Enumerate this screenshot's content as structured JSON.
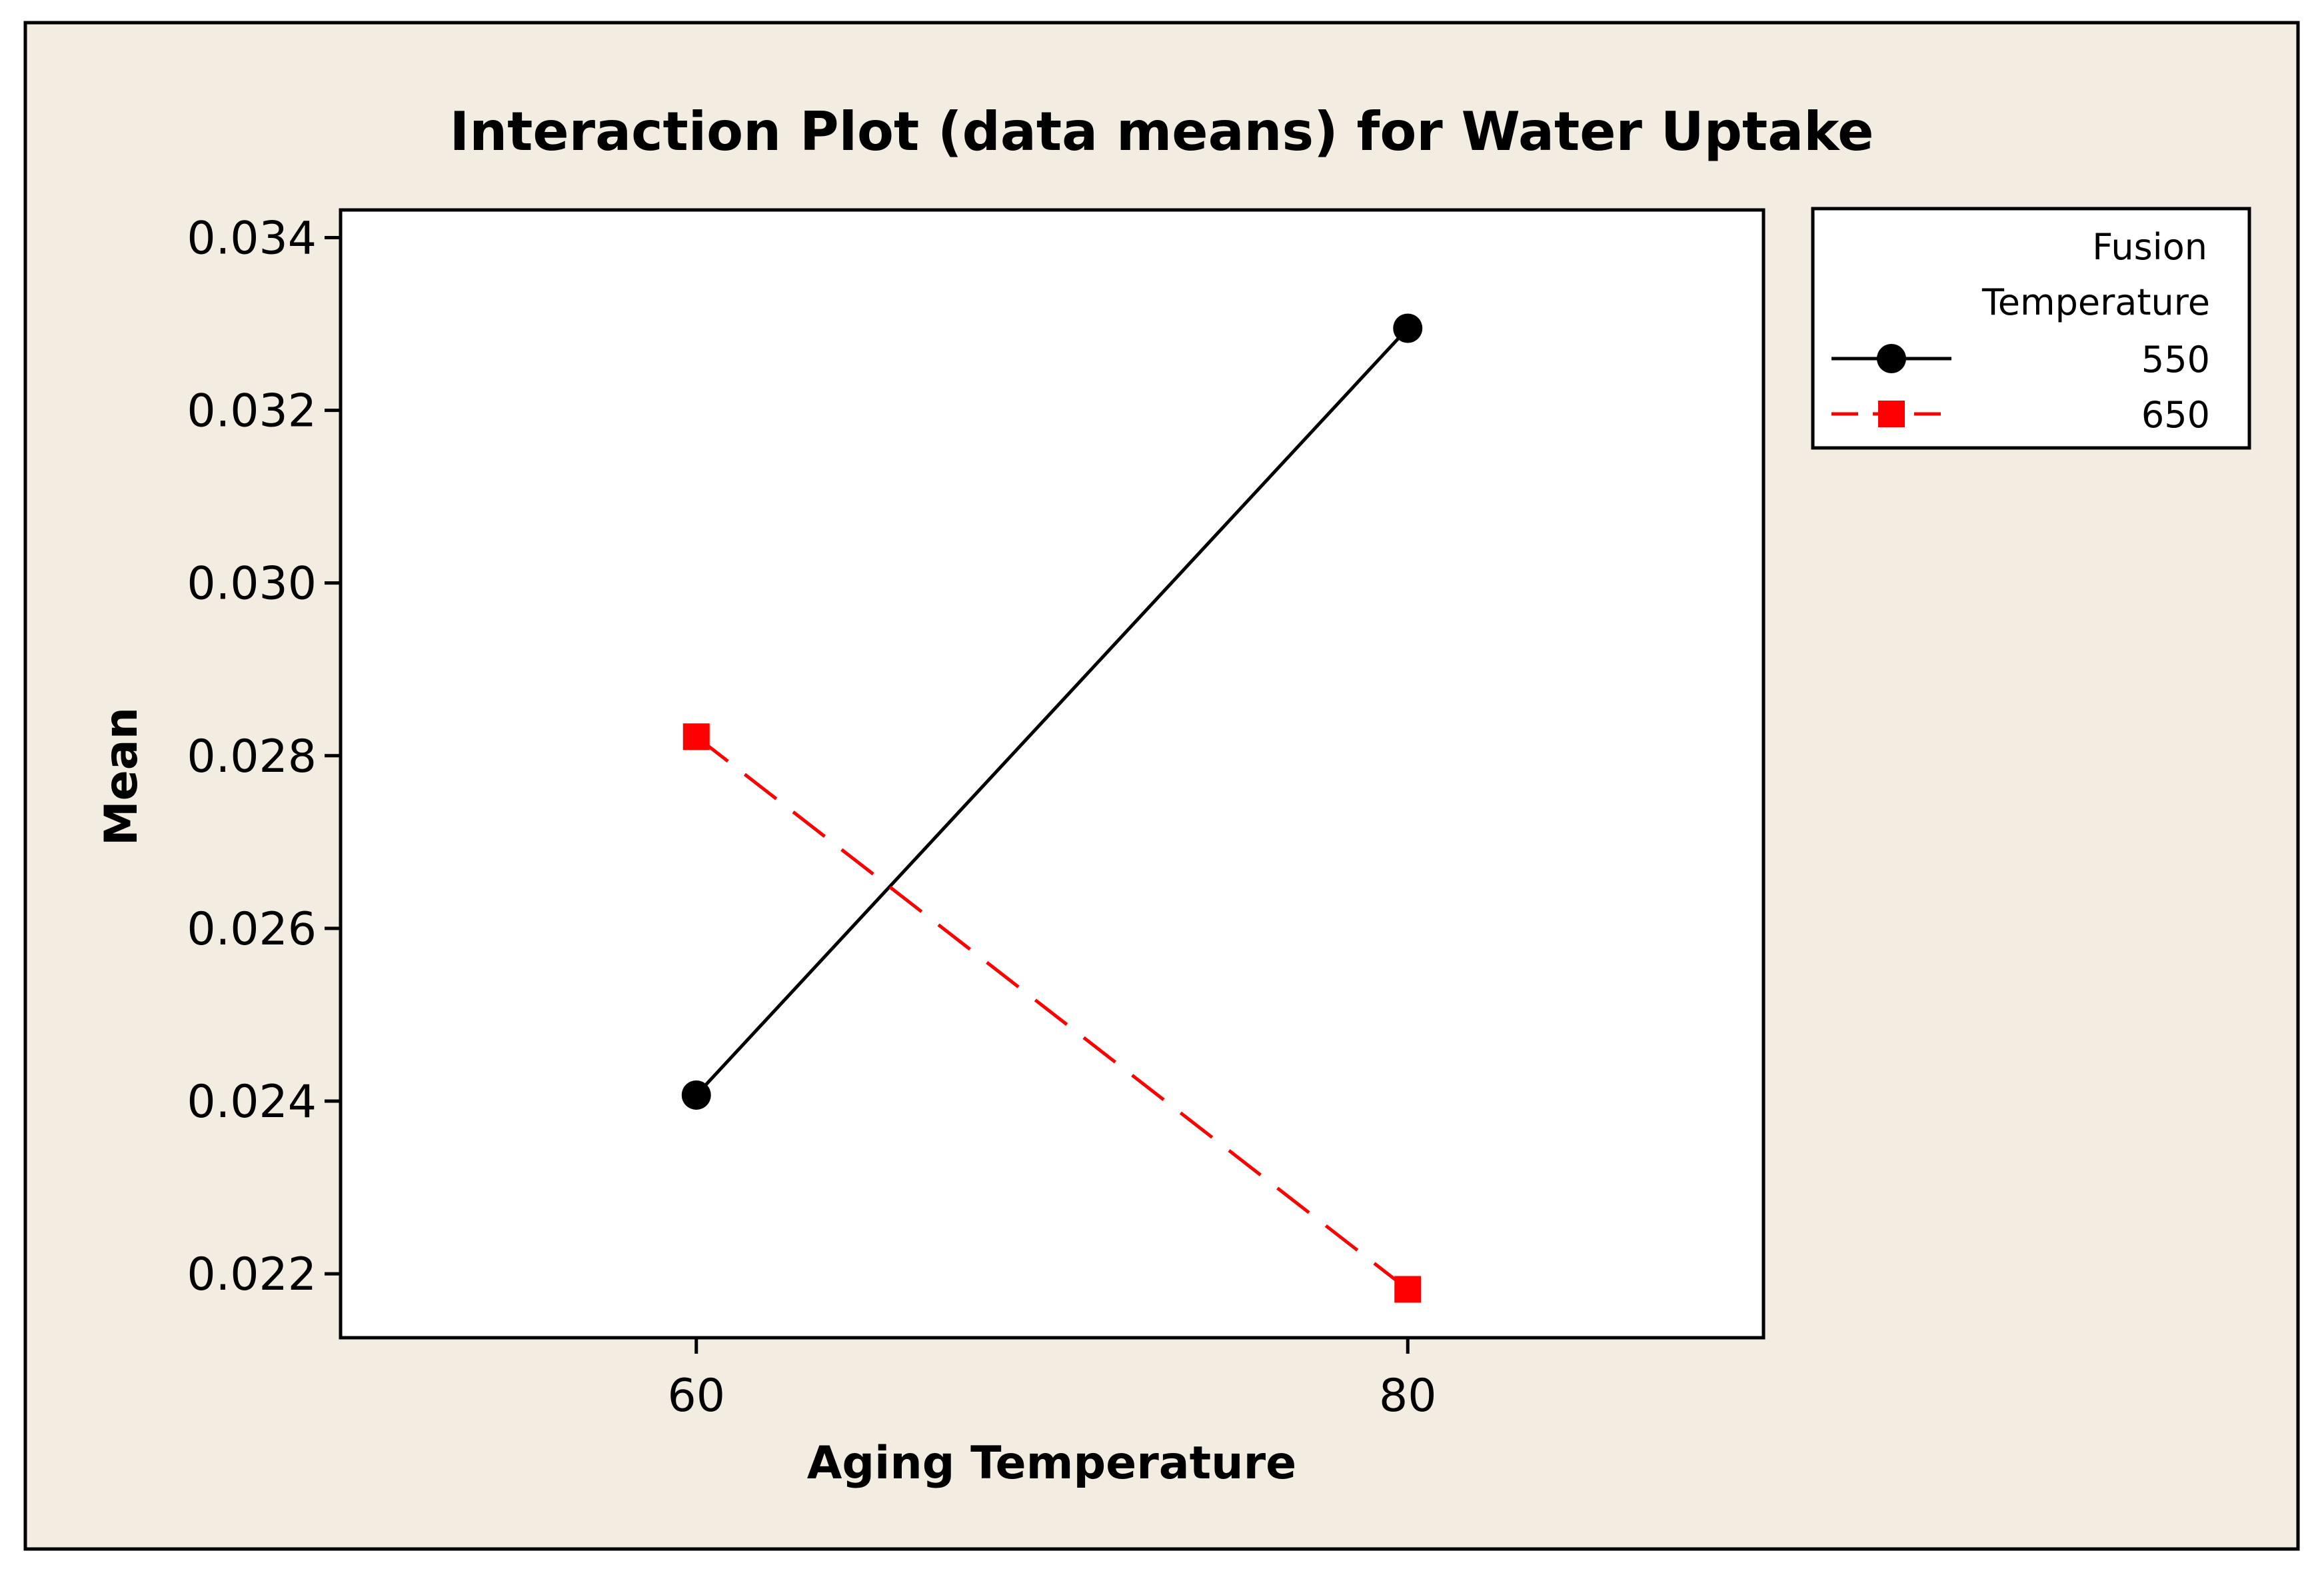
{
  "colors": {
    "background": "#f2ece1",
    "plot_background": "#ffffff",
    "series_550": "#000000",
    "series_650": "#ff0000"
  },
  "chart_data": {
    "type": "line",
    "title": "Interaction Plot (data means) for Water Uptake",
    "xlabel": "Aging Temperature",
    "ylabel": "Mean",
    "categories": [
      "60",
      "80"
    ],
    "x": [
      60,
      80
    ],
    "xlim": [
      50,
      90
    ],
    "ylim": [
      0.02126,
      0.03432
    ],
    "yticks": [
      0.022,
      0.024,
      0.026,
      0.028,
      0.03,
      0.032,
      0.034
    ],
    "ytick_labels": [
      "0.022",
      "0.024",
      "0.026",
      "0.028",
      "0.030",
      "0.032",
      "0.034"
    ],
    "legend": {
      "title_line1": "Fusion",
      "title_line2": "Temperature",
      "placement": "top-right-outside"
    },
    "series": [
      {
        "name": "550",
        "values": [
          0.02407,
          0.03295
        ],
        "color": "#000000",
        "line_style": "solid",
        "marker": "circle"
      },
      {
        "name": "650",
        "values": [
          0.02822,
          0.02182
        ],
        "color": "#ff0000",
        "line_style": "dashed",
        "marker": "square"
      }
    ]
  }
}
